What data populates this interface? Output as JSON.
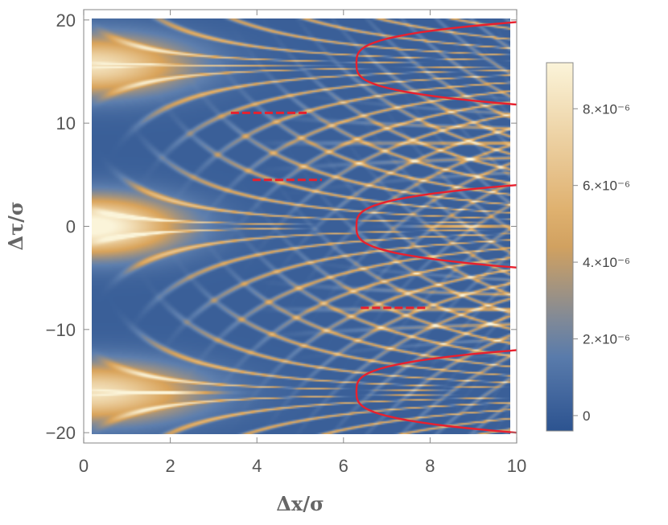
{
  "chart_data": {
    "type": "heatmap",
    "title": "",
    "xlabel": "Δx/σ",
    "ylabel": "Δτ/σ",
    "xlim": [
      0,
      10
    ],
    "ylim": [
      -21,
      21
    ],
    "x_ticks": [
      {
        "value": 0,
        "label": "0"
      },
      {
        "value": 2,
        "label": "2"
      },
      {
        "value": 4,
        "label": "4"
      },
      {
        "value": 6,
        "label": "6"
      },
      {
        "value": 8,
        "label": "8"
      },
      {
        "value": 10,
        "label": "10"
      }
    ],
    "y_ticks": [
      {
        "value": 20,
        "label": "20"
      },
      {
        "value": 10,
        "label": "10"
      },
      {
        "value": 0,
        "label": "0"
      },
      {
        "value": -10,
        "label": "−10"
      },
      {
        "value": -20,
        "label": "−20"
      }
    ],
    "data_extent": {
      "x": [
        0.2,
        10
      ],
      "y": [
        -20,
        20
      ]
    },
    "colorbar": {
      "min": -4e-07,
      "max": 9.2e-06,
      "ticks": [
        {
          "value": 0,
          "label": "0"
        },
        {
          "value": 2e-06,
          "label": "2.×10⁻⁶"
        },
        {
          "value": 4e-06,
          "label": "4.×10⁻⁶"
        },
        {
          "value": 6e-06,
          "label": "6.×10⁻⁶"
        },
        {
          "value": 8e-06,
          "label": "8.×10⁻⁶"
        }
      ]
    },
    "colors": {
      "low": "#2c5390",
      "mid_low": "#5e7fae",
      "mid": "#d9a35a",
      "high": "#fbf4d9",
      "contour": "#e8202e"
    },
    "features": {
      "bright_lobes_at_x_small": [
        {
          "tau": 15.5,
          "peak": 8.5e-06
        },
        {
          "tau": 0,
          "peak": 9.2e-06
        },
        {
          "tau": -16,
          "peak": 8.5e-06
        }
      ],
      "fringe_convergence_points_at_x10": [
        8,
        -8
      ],
      "contour_level_note": "red contour lines outline low-value regions",
      "contour_u_curves": [
        {
          "center_tau": 15.8,
          "vertex_x": 6.3,
          "arm_tau": [
            11.8,
            19.8
          ]
        },
        {
          "center_tau": 0,
          "vertex_x": 6.3,
          "arm_tau": [
            -4,
            4
          ]
        },
        {
          "center_tau": -16,
          "vertex_x": 6.3,
          "arm_tau": [
            -20,
            -12
          ]
        }
      ],
      "contour_streaks": [
        {
          "x": [
            3.4,
            5.2
          ],
          "tau": 11
        },
        {
          "x": [
            3.9,
            5.5
          ],
          "tau": 4.5
        },
        {
          "x": [
            6.4,
            7.9
          ],
          "tau": -7.9
        }
      ]
    }
  }
}
